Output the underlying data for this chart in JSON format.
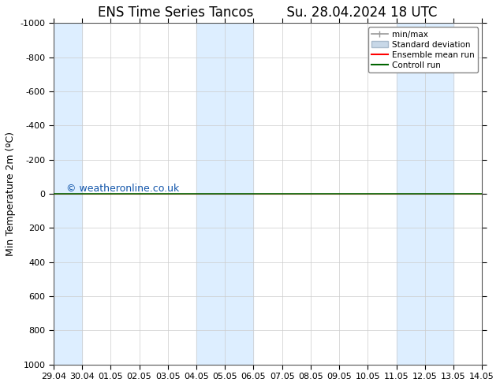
{
  "title": "ENS Time Series Tancos        Su. 28.04.2024 18 UTC",
  "ylabel": "Min Temperature 2m (ºC)",
  "xlabel_ticks": [
    "29.04",
    "30.04",
    "01.05",
    "02.05",
    "03.05",
    "04.05",
    "05.05",
    "06.05",
    "07.05",
    "08.05",
    "09.05",
    "10.05",
    "11.05",
    "12.05",
    "13.05",
    "14.05"
  ],
  "x_tick_positions": [
    0,
    1,
    2,
    3,
    4,
    5,
    6,
    7,
    8,
    9,
    10,
    11,
    12,
    13,
    14,
    15
  ],
  "ylim_top": -1000,
  "ylim_bottom": 1000,
  "yticks": [
    -1000,
    -800,
    -600,
    -400,
    -200,
    0,
    200,
    400,
    600,
    800,
    1000
  ],
  "ytick_labels": [
    "-1000",
    "-800",
    "-600",
    "-400",
    "-200",
    "0",
    "200",
    "400",
    "600",
    "800",
    "1000"
  ],
  "bg_color": "#ffffff",
  "plot_bg_color": "#ffffff",
  "shaded_bands": [
    {
      "x_start": 0,
      "x_end": 1,
      "color": "#ddeeff"
    },
    {
      "x_start": 5,
      "x_end": 7,
      "color": "#ddeeff"
    },
    {
      "x_start": 12,
      "x_end": 14,
      "color": "#ddeeff"
    }
  ],
  "control_run_y": 0,
  "ensemble_mean_y": 0,
  "watermark": "© weatheronline.co.uk",
  "watermark_color": "#1155aa",
  "legend_items": [
    {
      "label": "min/max",
      "color": "#999999",
      "style": "errorbar"
    },
    {
      "label": "Standard deviation",
      "color": "#c8d8e8",
      "style": "band"
    },
    {
      "label": "Ensemble mean run",
      "color": "#ff0000",
      "style": "line"
    },
    {
      "label": "Controll run",
      "color": "#006400",
      "style": "line"
    }
  ],
  "font_family": "DejaVu Sans",
  "title_fontsize": 12,
  "axis_fontsize": 9,
  "tick_fontsize": 8,
  "legend_fontsize": 7.5
}
